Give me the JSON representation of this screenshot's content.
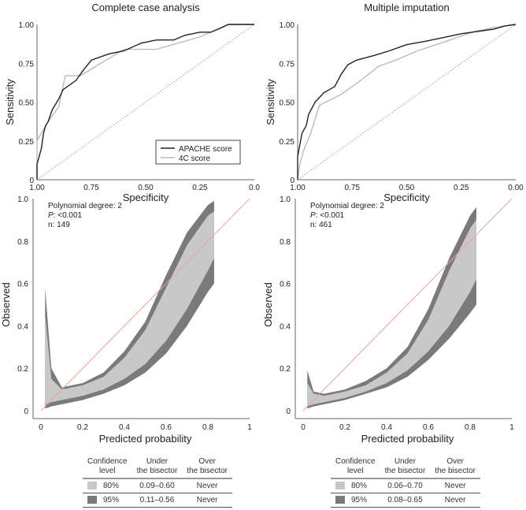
{
  "colors": {
    "apache": "#222222",
    "c4": "#bbbbbb",
    "ci80": "#c8c8c8",
    "ci95": "#7a7a7a",
    "bisector": "#f0a0a0"
  },
  "chart_data": [
    {
      "type": "line",
      "title": "Complete case analysis",
      "xlabel": "Specificity",
      "ylabel": "Sensitivity",
      "xlim": [
        1,
        0
      ],
      "ylim": [
        0,
        1
      ],
      "xticks": [
        "1.00",
        "0.75",
        "0.50",
        "0.25",
        "0.0"
      ],
      "yticks": [
        "0",
        "0.25",
        "0.50",
        "0.75",
        "1.00"
      ],
      "legend": "bottom-right",
      "series": [
        {
          "name": "APACHE score",
          "points": [
            [
              1,
              0
            ],
            [
              1,
              0.1
            ],
            [
              0.99,
              0.15
            ],
            [
              0.98,
              0.2
            ],
            [
              0.97,
              0.3
            ],
            [
              0.96,
              0.35
            ],
            [
              0.95,
              0.37
            ],
            [
              0.93,
              0.45
            ],
            [
              0.9,
              0.52
            ],
            [
              0.88,
              0.58
            ],
            [
              0.82,
              0.64
            ],
            [
              0.79,
              0.7
            ],
            [
              0.75,
              0.77
            ],
            [
              0.67,
              0.81
            ],
            [
              0.6,
              0.83
            ],
            [
              0.52,
              0.88
            ],
            [
              0.45,
              0.9
            ],
            [
              0.37,
              0.9
            ],
            [
              0.32,
              0.93
            ],
            [
              0.25,
              0.95
            ],
            [
              0.2,
              0.95
            ],
            [
              0.15,
              0.98
            ],
            [
              0.12,
              1
            ],
            [
              0,
              1
            ]
          ]
        },
        {
          "name": "4C score",
          "points": [
            [
              1,
              0
            ],
            [
              1,
              0.25
            ],
            [
              0.98,
              0.3
            ],
            [
              0.95,
              0.37
            ],
            [
              0.9,
              0.47
            ],
            [
              0.87,
              0.67
            ],
            [
              0.8,
              0.67
            ],
            [
              0.6,
              0.84
            ],
            [
              0.45,
              0.84
            ],
            [
              0.25,
              0.92
            ],
            [
              0.15,
              0.98
            ],
            [
              0.12,
              1
            ],
            [
              0,
              1
            ]
          ]
        }
      ]
    },
    {
      "type": "line",
      "title": "Multiple imputation",
      "xlabel": "Specificity",
      "ylabel": "Sensitivity",
      "xlim": [
        1,
        0
      ],
      "ylim": [
        0,
        1
      ],
      "xticks": [
        "1.00",
        "0.75",
        "0.50",
        "0.25",
        "0.00"
      ],
      "yticks": [
        "0",
        "0.25",
        "0.50",
        "0.75",
        "1.00"
      ],
      "series": [
        {
          "name": "APACHE score",
          "points": [
            [
              1,
              0
            ],
            [
              1,
              0.15
            ],
            [
              0.98,
              0.3
            ],
            [
              0.96,
              0.35
            ],
            [
              0.95,
              0.42
            ],
            [
              0.92,
              0.5
            ],
            [
              0.88,
              0.56
            ],
            [
              0.83,
              0.6
            ],
            [
              0.8,
              0.68
            ],
            [
              0.77,
              0.74
            ],
            [
              0.73,
              0.77
            ],
            [
              0.65,
              0.8
            ],
            [
              0.58,
              0.83
            ],
            [
              0.5,
              0.87
            ],
            [
              0.42,
              0.89
            ],
            [
              0.35,
              0.91
            ],
            [
              0.25,
              0.94
            ],
            [
              0.15,
              0.96
            ],
            [
              0.1,
              0.97
            ],
            [
              0.05,
              0.99
            ],
            [
              0,
              1
            ]
          ]
        },
        {
          "name": "4C score",
          "points": [
            [
              1,
              0
            ],
            [
              0.99,
              0.1
            ],
            [
              0.97,
              0.2
            ],
            [
              0.94,
              0.3
            ],
            [
              0.9,
              0.48
            ],
            [
              0.8,
              0.55
            ],
            [
              0.72,
              0.63
            ],
            [
              0.63,
              0.73
            ],
            [
              0.55,
              0.77
            ],
            [
              0.45,
              0.83
            ],
            [
              0.3,
              0.9
            ],
            [
              0.2,
              0.95
            ],
            [
              0.1,
              0.98
            ],
            [
              0,
              1
            ]
          ]
        }
      ]
    },
    {
      "type": "area",
      "xlabel": "Predicted probability",
      "ylabel": "Observed",
      "xlim": [
        0,
        1
      ],
      "ylim": [
        0,
        1
      ],
      "xticks": [
        "0",
        "0.2",
        "0.4",
        "0.6",
        "0.8",
        "1"
      ],
      "yticks": [
        "0",
        "0.2",
        "0.4",
        "0.6",
        "0.8",
        "1.0"
      ],
      "annotations": [
        "Polynomial degree: 2",
        "P",
        ": <0.001",
        "n: 149"
      ],
      "x": [
        0.02,
        0.05,
        0.1,
        0.2,
        0.3,
        0.4,
        0.5,
        0.6,
        0.7,
        0.8,
        0.83
      ],
      "upper95": [
        0.58,
        0.2,
        0.11,
        0.13,
        0.18,
        0.28,
        0.42,
        0.64,
        0.84,
        0.97,
        0.99
      ],
      "upper80": [
        0.45,
        0.15,
        0.1,
        0.12,
        0.16,
        0.25,
        0.38,
        0.58,
        0.78,
        0.92,
        0.94
      ],
      "lower80": [
        0.03,
        0.04,
        0.05,
        0.07,
        0.1,
        0.15,
        0.22,
        0.33,
        0.48,
        0.66,
        0.72
      ],
      "lower95": [
        0.01,
        0.02,
        0.03,
        0.05,
        0.08,
        0.12,
        0.18,
        0.27,
        0.4,
        0.56,
        0.6
      ]
    },
    {
      "type": "area",
      "xlabel": "Predicted probability",
      "ylabel": "Observed",
      "xlim": [
        0,
        1
      ],
      "ylim": [
        0,
        1
      ],
      "xticks": [
        "0",
        "0.2",
        "0.4",
        "0.6",
        "0.8",
        "1"
      ],
      "yticks": [
        "0",
        "0.2",
        "0.4",
        "0.6",
        "0.8",
        "1.0"
      ],
      "annotations": [
        "Polynomial degree: 2",
        "P",
        ": <0.001",
        "n: 461"
      ],
      "x": [
        0.02,
        0.05,
        0.1,
        0.2,
        0.3,
        0.4,
        0.5,
        0.6,
        0.7,
        0.8,
        0.83
      ],
      "upper95": [
        0.19,
        0.09,
        0.08,
        0.1,
        0.14,
        0.2,
        0.3,
        0.48,
        0.72,
        0.92,
        0.96
      ],
      "upper80": [
        0.13,
        0.08,
        0.07,
        0.09,
        0.12,
        0.18,
        0.27,
        0.43,
        0.66,
        0.86,
        0.9
      ],
      "lower80": [
        0.02,
        0.03,
        0.04,
        0.06,
        0.09,
        0.13,
        0.19,
        0.28,
        0.4,
        0.56,
        0.62
      ],
      "lower95": [
        0.01,
        0.02,
        0.03,
        0.05,
        0.08,
        0.11,
        0.16,
        0.24,
        0.34,
        0.46,
        0.5
      ]
    }
  ],
  "tables": [
    {
      "headers": [
        [
          "Confidence",
          "level"
        ],
        [
          "Under",
          "the bisector"
        ],
        [
          "Over",
          "the bisector"
        ]
      ],
      "rows": [
        {
          "level": "80%",
          "under": "0.09–0.60",
          "over": "Never"
        },
        {
          "level": "95%",
          "under": "0.11–0.56",
          "over": "Never"
        }
      ]
    },
    {
      "headers": [
        [
          "Confidence",
          "level"
        ],
        [
          "Under",
          "the bisector"
        ],
        [
          "Over",
          "the bisector"
        ]
      ],
      "rows": [
        {
          "level": "80%",
          "under": "0.06–0.70",
          "over": "Never"
        },
        {
          "level": "95%",
          "under": "0.08–0.65",
          "over": "Never"
        }
      ]
    }
  ]
}
